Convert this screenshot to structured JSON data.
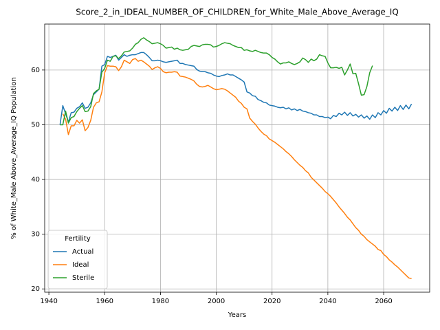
{
  "chart_data": {
    "type": "line",
    "title": "Score_2_in_IDEAL_NUMBER_OF_CHILDREN_for_White_Male_Above_Average_IQ",
    "xlabel": "Years",
    "ylabel": "% of White_Male Above_Average_IQ Population",
    "legend_title": "Fertility",
    "legend": "lower left",
    "grid": true,
    "xlim": [
      1938.5,
      2076.5
    ],
    "ylim": [
      19.4,
      68.4
    ],
    "xticks": [
      1940,
      1960,
      1980,
      2000,
      2020,
      2040,
      2060
    ],
    "yticks": [
      20,
      30,
      40,
      50,
      60
    ],
    "x": [
      1944,
      1945,
      1946,
      1947,
      1948,
      1949,
      1950,
      1951,
      1952,
      1953,
      1954,
      1955,
      1956,
      1957,
      1958,
      1959,
      1960,
      1961,
      1962,
      1963,
      1964,
      1965,
      1966,
      1967,
      1968,
      1969,
      1970,
      1971,
      1972,
      1973,
      1974,
      1975,
      1976,
      1977,
      1978,
      1979,
      1980,
      1981,
      1982,
      1983,
      1984,
      1985,
      1986,
      1987,
      1988,
      1989,
      1990,
      1991,
      1992,
      1993,
      1994,
      1995,
      1996,
      1997,
      1998,
      1999,
      2000,
      2001,
      2002,
      2003,
      2004,
      2005,
      2006,
      2007,
      2008,
      2009,
      2010,
      2011,
      2012,
      2013,
      2014,
      2015,
      2016,
      2017,
      2018,
      2019,
      2020,
      2021,
      2022,
      2023,
      2024,
      2025,
      2026,
      2027,
      2028,
      2029,
      2030,
      2031,
      2032,
      2033,
      2034,
      2035,
      2036,
      2037,
      2038,
      2039,
      2040,
      2041,
      2042,
      2043,
      2044,
      2045,
      2046,
      2047,
      2048,
      2049,
      2050,
      2051,
      2052,
      2053,
      2054,
      2055,
      2056,
      2057,
      2058,
      2059,
      2060,
      2061,
      2062,
      2063,
      2064,
      2065,
      2066,
      2067,
      2068,
      2069,
      2070
    ],
    "series": [
      {
        "name": "Actual",
        "color": "#1f77b4",
        "values": [
          50,
          53.5,
          52,
          50.5,
          52.2,
          52.3,
          53,
          53.3,
          54,
          53,
          53.2,
          54,
          55.5,
          56,
          56.5,
          60.7,
          61,
          62.5,
          62.3,
          62.5,
          62.7,
          61.8,
          62.3,
          62.8,
          62.5,
          62.7,
          62.8,
          62.8,
          63,
          63.2,
          63.2,
          62.8,
          62.3,
          61.7,
          61.7,
          61.8,
          61.7,
          61.5,
          61.4,
          61.5,
          61.6,
          61.7,
          61.8,
          61.2,
          61.2,
          61,
          60.9,
          60.8,
          60.7,
          60.1,
          59.8,
          59.7,
          59.7,
          59.5,
          59.4,
          59.1,
          58.9,
          58.8,
          59,
          59.1,
          59.3,
          59.1,
          59.1,
          58.8,
          58.5,
          58.2,
          57.8,
          56,
          55.8,
          55.3,
          55.2,
          54.6,
          54.4,
          54.1,
          54,
          53.6,
          53.5,
          53.4,
          53.2,
          53.1,
          53.2,
          52.9,
          53.1,
          52.7,
          52.9,
          52.6,
          52.8,
          52.5,
          52.4,
          52.2,
          52.1,
          51.8,
          51.8,
          51.5,
          51.5,
          51.3,
          51.4,
          51.1,
          51.7,
          51.5,
          52.1,
          51.8,
          52.3,
          51.7,
          52.2,
          51.6,
          51.9,
          51.4,
          51.8,
          51.2,
          51.6,
          51,
          51.8,
          51.3,
          52.2,
          51.8,
          52.6,
          52.1,
          53,
          52.5,
          53.2,
          52.6,
          53.5,
          52.8,
          53.6,
          52.9,
          53.8
        ]
      },
      {
        "name": "Ideal",
        "color": "#ff7f0e",
        "values": [
          null,
          52,
          51,
          48.2,
          49.8,
          49.8,
          50.8,
          50.3,
          50.9,
          48.9,
          49.5,
          50.8,
          53.2,
          54,
          54.2,
          56,
          59.5,
          60.8,
          60.7,
          60.7,
          60.6,
          59.9,
          60.6,
          61.8,
          61.5,
          61.2,
          61.9,
          62.1,
          61.6,
          61.8,
          61.5,
          61.1,
          60.7,
          60.1,
          60.4,
          60.6,
          60.3,
          59.7,
          59.5,
          59.6,
          59.6,
          59.7,
          59.6,
          58.9,
          58.8,
          58.7,
          58.5,
          58.3,
          58,
          57.4,
          57,
          56.9,
          57,
          57.2,
          56.9,
          56.6,
          56.4,
          56.5,
          56.6,
          56.5,
          56.2,
          55.8,
          55.4,
          55,
          54.3,
          53.9,
          53.2,
          52.9,
          51.2,
          50.6,
          50.1,
          49.4,
          48.8,
          48.3,
          48,
          47.4,
          47.1,
          46.8,
          46.4,
          46,
          45.6,
          45.1,
          44.7,
          44.2,
          43.6,
          43.1,
          42.6,
          42.2,
          41.6,
          41.2,
          40.4,
          39.9,
          39.4,
          38.9,
          38.4,
          37.8,
          37.4,
          36.9,
          36.3,
          35.7,
          35,
          34.4,
          33.8,
          33.1,
          32.6,
          31.9,
          31.2,
          30.7,
          30,
          29.6,
          29,
          28.6,
          28.2,
          27.8,
          27.2,
          27,
          26.3,
          25.9,
          25.3,
          24.9,
          24.4,
          24,
          23.5,
          23,
          22.5,
          22,
          21.9
        ]
      },
      {
        "name": "Sterile",
        "color": "#2ca02c",
        "values": [
          50,
          50,
          52.5,
          50.3,
          51.3,
          51.5,
          52.4,
          53,
          53.5,
          52.4,
          52.5,
          53.3,
          55.7,
          56.2,
          56.5,
          59.6,
          60.3,
          61.8,
          61.6,
          62.5,
          62.6,
          62.1,
          62.6,
          63.3,
          63.4,
          63.5,
          64,
          64.7,
          65,
          65.6,
          65.9,
          65.5,
          65.2,
          64.8,
          64.9,
          65,
          64.8,
          64.5,
          64,
          64.1,
          64.2,
          63.8,
          64,
          63.7,
          63.6,
          63.7,
          63.8,
          64.3,
          64.5,
          64.4,
          64.3,
          64.6,
          64.7,
          64.7,
          64.6,
          64.2,
          64.3,
          64.5,
          64.8,
          65,
          64.9,
          64.8,
          64.5,
          64.3,
          64.1,
          64.1,
          63.6,
          63.7,
          63.5,
          63.4,
          63.6,
          63.4,
          63.2,
          63.1,
          63.1,
          62.8,
          62.3,
          62,
          61.5,
          61.1,
          61.3,
          61.3,
          61.5,
          61.2,
          61,
          61.2,
          61.5,
          62.2,
          61.9,
          61.4,
          62,
          61.7,
          62,
          62.8,
          62.6,
          62.5,
          61.3,
          60.4,
          60.4,
          60.5,
          60.3,
          60.5,
          59.1,
          60,
          61.1,
          59.3,
          59.4,
          57.5,
          55.4,
          55.5,
          57,
          59.5,
          60.8,
          null,
          null,
          null,
          null,
          null,
          null,
          null,
          null,
          null,
          null,
          null,
          null,
          null,
          null
        ]
      }
    ]
  }
}
